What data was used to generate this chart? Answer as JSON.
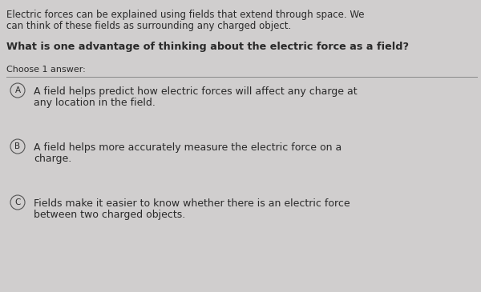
{
  "background_color": "#d0cece",
  "passage_text_line1": "Electric forces can be explained using fields that extend through space. We",
  "passage_text_line2": "can think of these fields as surrounding any charged object.",
  "question_text": "What is one advantage of thinking about the electric force as a field?",
  "choose_text": "Choose 1 answer:",
  "answers": [
    {
      "label": "A",
      "line1": "A field helps predict how electric forces will affect any charge at",
      "line2": "any location in the field."
    },
    {
      "label": "B",
      "line1": "A field helps more accurately measure the electric force on a",
      "line2": "charge."
    },
    {
      "label": "C",
      "line1": "Fields make it easier to know whether there is an electric force",
      "line2": "between two charged objects."
    }
  ],
  "passage_fontsize": 8.5,
  "question_fontsize": 9.2,
  "choose_fontsize": 8.0,
  "answer_fontsize": 9.0,
  "label_fontsize": 7.5,
  "text_color": "#2a2a2a",
  "circle_edge_color": "#555555",
  "circle_face_color": "#d0cece",
  "line_color": "#888888",
  "fig_width": 6.0,
  "fig_height": 3.65,
  "dpi": 100
}
